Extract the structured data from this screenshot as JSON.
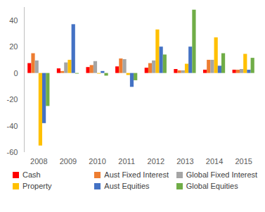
{
  "chart_data": {
    "type": "bar",
    "categories": [
      "2008",
      "2009",
      "2010",
      "2011",
      "2012",
      "2013",
      "2014",
      "2015"
    ],
    "series": [
      {
        "name": "Cash",
        "color": "#ff0000",
        "values": [
          7.5,
          3.5,
          4.5,
          5,
          4,
          3,
          2.5,
          2.5
        ]
      },
      {
        "name": "Aust Fixed Interest",
        "color": "#ed7d31",
        "values": [
          15,
          1.5,
          6,
          11,
          7.5,
          2,
          10,
          2.5
        ]
      },
      {
        "name": "Global Fixed Interest",
        "color": "#a5a5a5",
        "values": [
          9.5,
          8,
          9,
          10.5,
          9.5,
          2,
          10,
          3
        ]
      },
      {
        "name": "Property",
        "color": "#ffc000",
        "values": [
          -55,
          10,
          -0.5,
          -1.5,
          33,
          7,
          27,
          14.5
        ]
      },
      {
        "name": "Aust Equities",
        "color": "#4472c4",
        "values": [
          -38,
          37,
          1.5,
          -10.5,
          20,
          20,
          5.5,
          2.5
        ]
      },
      {
        "name": "Global Equities",
        "color": "#70ad47",
        "values": [
          -25,
          -0.5,
          -2,
          -5.5,
          14,
          48,
          15,
          11.5
        ]
      }
    ],
    "ylim": [
      -60,
      50
    ],
    "yticks": [
      -60,
      -40,
      -20,
      0,
      20,
      40
    ],
    "grid": false,
    "legend": "bottom"
  }
}
